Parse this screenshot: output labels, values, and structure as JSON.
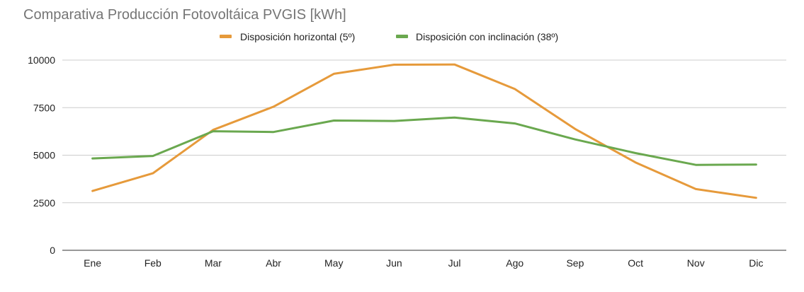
{
  "chart_data": {
    "type": "line",
    "title": "Comparativa Producción Fotovoltáica PVGIS [kWh]",
    "xlabel": "",
    "ylabel": "",
    "categories": [
      "Ene",
      "Feb",
      "Mar",
      "Abr",
      "May",
      "Jun",
      "Jul",
      "Ago",
      "Sep",
      "Oct",
      "Nov",
      "Dic"
    ],
    "ylim": [
      0,
      10000
    ],
    "yticks": [
      0,
      2500,
      5000,
      7500,
      10000
    ],
    "ytick_labels": [
      "0",
      "2500",
      "5000",
      "7500",
      "10000"
    ],
    "grid": true,
    "legend_position": "top",
    "series": [
      {
        "name": "Disposición horizontal (5º)",
        "color": "#e69a3b",
        "values": [
          3120,
          4050,
          6330,
          7550,
          9280,
          9760,
          9770,
          8480,
          6380,
          4620,
          3220,
          2760
        ]
      },
      {
        "name": "Disposición con inclinación (38º)",
        "color": "#6aa84f",
        "values": [
          4830,
          4960,
          6260,
          6220,
          6820,
          6800,
          6980,
          6670,
          5830,
          5110,
          4490,
          4510
        ]
      }
    ]
  }
}
